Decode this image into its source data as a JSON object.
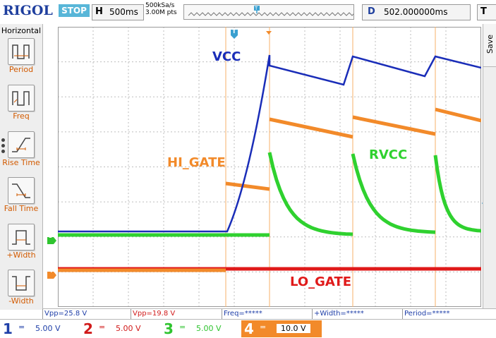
{
  "topbar": {
    "brand": "RIGOL",
    "run_state": "STOP",
    "timebase_key": "H",
    "timebase_value": "500ms",
    "sample_rate": "500kSa/s",
    "memory_depth": "3.00M pts",
    "delay_key": "D",
    "delay_value": "502.000000ms",
    "trigger_key": "T"
  },
  "left_menu": {
    "title": "Horizontal",
    "items": [
      {
        "label": "Period",
        "icon": "period-icon"
      },
      {
        "label": "Freq",
        "icon": "freq-icon"
      },
      {
        "label": "Rise Time",
        "icon": "rise-time-icon"
      },
      {
        "label": "Fall Time",
        "icon": "fall-time-icon"
      },
      {
        "label": "+Width",
        "icon": "positive-width-icon"
      },
      {
        "label": "-Width",
        "icon": "negative-width-icon"
      }
    ]
  },
  "right_panel": {
    "save_label": "Save"
  },
  "screen": {
    "trigger_marker": "T",
    "right_marker": "T",
    "labels": {
      "vcc": "VCC",
      "hi_gate": "HI_GATE",
      "rvcc": "RVCC",
      "lo_gate": "LO_GATE"
    },
    "channel_markers": {
      "ch3": "3",
      "ch4": "4"
    }
  },
  "measurements": [
    {
      "text": "Vpp=25.8 V",
      "color": "#1f3fa8"
    },
    {
      "text": "Vpp=19.8 V",
      "color": "#d11a1a"
    },
    {
      "text": "Freq=*****",
      "color": "#1f3fa8"
    },
    {
      "text": "+Width=*****",
      "color": "#1f3fa8"
    },
    {
      "text": "Period=*****",
      "color": "#1f3fa8"
    }
  ],
  "channels": [
    {
      "num": "1",
      "coupling": "=",
      "scale": "5.00 V",
      "color": "#1f3fa8"
    },
    {
      "num": "2",
      "coupling": "=",
      "scale": "5.00 V",
      "color": "#d11a1a"
    },
    {
      "num": "3",
      "coupling": "=",
      "scale": "5.00 V",
      "color": "#2fc42f"
    },
    {
      "num": "4",
      "coupling": "=",
      "scale": "10.0 V",
      "color": "#f28a2a"
    }
  ],
  "colors": {
    "vcc_trace": "#1a2db8",
    "hi_gate_trace": "#f28a2a",
    "rvcc_trace": "#2fd12f",
    "lo_gate_trace": "#e01a1a",
    "grid": "#bdbdbd",
    "brand": "#1f3f9e",
    "stop_badge": "#58b6d8"
  }
}
